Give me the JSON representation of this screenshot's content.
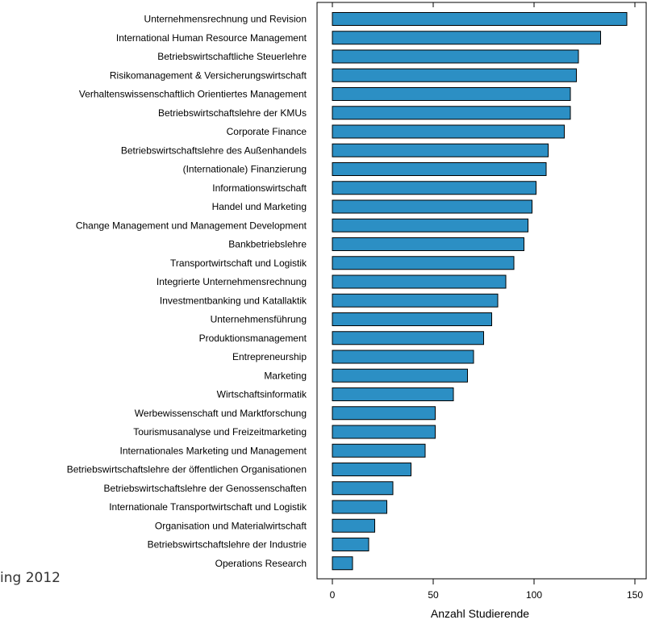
{
  "clipped_text": "ing 2012",
  "chart_data": {
    "type": "bar",
    "orientation": "horizontal",
    "categories": [
      "Unternehmensrechnung und Revision",
      "International Human Resource Management",
      "Betriebswirtschaftliche Steuerlehre",
      "Risikomanagement & Versicherungswirtschaft",
      "Verhaltenswissenschaftlich Orientiertes Management",
      "Betriebswirtschaftslehre der KMUs",
      "Corporate Finance",
      "Betriebswirtschaftslehre des Außenhandels",
      "(Internationale) Finanzierung",
      "Informationswirtschaft",
      "Handel und Marketing",
      "Change Management und Management Development",
      "Bankbetriebslehre",
      "Transportwirtschaft und Logistik",
      "Integrierte Unternehmensrechnung",
      "Investmentbanking und Katallaktik",
      "Unternehmensführung",
      "Produktionsmanagement",
      "Entrepreneurship",
      "Marketing",
      "Wirtschaftsinformatik",
      "Werbewissenschaft und Marktforschung",
      "Tourismusanalyse und Freizeitmarketing",
      "Internationales Marketing und Management",
      "Betriebswirtschaftslehre der öffentlichen Organisationen",
      "Betriebswirtschaftslehre der Genossenschaften",
      "Internationale Transportwirtschaft und Logistik",
      "Organisation und Materialwirtschaft",
      "Betriebswirtschaftslehre der Industrie",
      "Operations Research"
    ],
    "values": [
      146,
      133,
      122,
      121,
      118,
      118,
      115,
      107,
      106,
      101,
      99,
      97,
      95,
      90,
      86,
      82,
      79,
      75,
      70,
      67,
      60,
      51,
      51,
      46,
      39,
      30,
      27,
      21,
      18,
      10
    ],
    "xlabel": "Anzahl Studierende",
    "xlim": [
      0,
      150
    ],
    "xticks": [
      0,
      50,
      100,
      150
    ],
    "grid": false,
    "bar_color": "#2c8fc4"
  }
}
